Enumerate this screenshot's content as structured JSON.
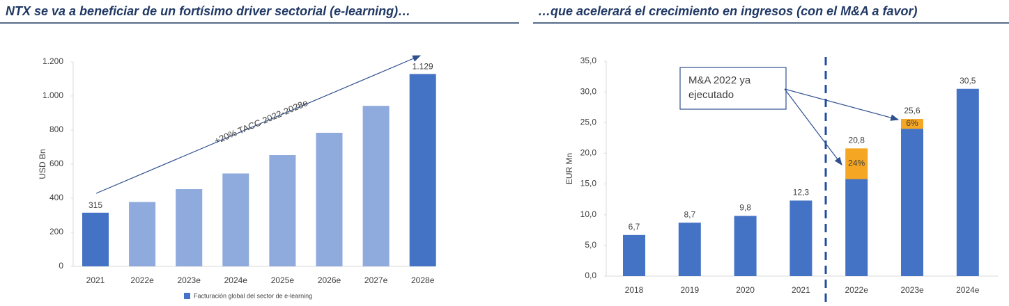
{
  "chart_data": [
    {
      "type": "bar",
      "title": "NTX se va a beneficiar de un fortísimo driver sectorial (e-learning)…",
      "y_label": "USD Bn",
      "annotation": "+20% TACC 2022-2028e",
      "categories": [
        "2021",
        "2022e",
        "2023e",
        "2024e",
        "2025e",
        "2026e",
        "2027e",
        "2028e"
      ],
      "series": [
        {
          "name": "Facturación global del sector de e-learning",
          "color": "#4472c4",
          "values": [
            315,
            378,
            453,
            545,
            653,
            784,
            942,
            1129
          ],
          "value_labels": [
            "315",
            null,
            null,
            null,
            null,
            null,
            null,
            "1.129"
          ],
          "bar_colors": [
            "#4472c4",
            "#8faadc",
            "#8faadc",
            "#8faadc",
            "#8faadc",
            "#8faadc",
            "#8faadc",
            "#4472c4"
          ]
        }
      ],
      "ylim": [
        0,
        1200
      ],
      "yticks": [
        0,
        200,
        400,
        600,
        800,
        {
          "value": 1000,
          "label": "1.000"
        },
        {
          "value": 1200,
          "label": "1.200"
        }
      ],
      "legend": "bottom"
    },
    {
      "type": "stacked_bar",
      "title": "…que acelerará el crecimiento en ingresos (con el M&A a favor)",
      "y_label": "EUR Mn",
      "annotation_lines": [
        "M&A 2022 ya",
        "ejecutado"
      ],
      "categories": [
        "2018",
        "2019",
        "2020",
        "2021",
        "2022e",
        "2023e",
        "2024e"
      ],
      "series": [
        {
          "color": "#4472c4",
          "values": [
            6.7,
            8.7,
            9.8,
            12.3,
            15.8,
            24.0,
            30.5
          ]
        },
        {
          "color": "#f5a623",
          "values": [
            null,
            null,
            null,
            null,
            5.0,
            1.6,
            null
          ],
          "segment_labels": [
            null,
            null,
            null,
            null,
            "24%",
            "6%",
            null
          ]
        }
      ],
      "total_labels": [
        "6,7",
        "8,7",
        "9,8",
        "12,3",
        "20,8",
        "25,6",
        "30,5"
      ],
      "ylim": [
        0,
        35
      ],
      "yticks": [
        {
          "value": 0,
          "label": "0,0"
        },
        {
          "value": 5,
          "label": "5,0"
        },
        {
          "value": 10,
          "label": "10,0"
        },
        {
          "value": 15,
          "label": "15,0"
        },
        {
          "value": 20,
          "label": "20,0"
        },
        {
          "value": 25,
          "label": "25,0"
        },
        {
          "value": 30,
          "label": "30,0"
        },
        {
          "value": 35,
          "label": "35,0"
        }
      ]
    }
  ]
}
